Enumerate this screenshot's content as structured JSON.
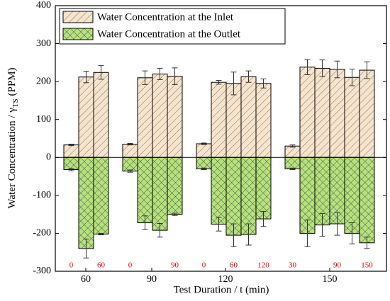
{
  "chart_data": {
    "type": "bar",
    "xlabel": "Test Duration / t (min)",
    "ylabel": {
      "text": "Water Concentration / γ",
      "sub": "TS",
      "unit": "(PPM)"
    },
    "categories": [
      "60",
      "90",
      "120",
      "150"
    ],
    "annotations": [
      [
        "0",
        null,
        "60"
      ],
      [
        "0",
        null,
        null,
        "90"
      ],
      [
        "0",
        null,
        "60",
        null,
        "120"
      ],
      [
        "30",
        null,
        null,
        "90",
        null,
        "150"
      ]
    ],
    "series": [
      {
        "name": "Water Concentration at the Inlet",
        "color": "#f7e4cc",
        "hatch": "diagonal",
        "values": [
          [
            33,
            212,
            224
          ],
          [
            35,
            210,
            220,
            214
          ],
          [
            36,
            198,
            195,
            213,
            195
          ],
          [
            30,
            238,
            235,
            232,
            211,
            230
          ]
        ],
        "errors": [
          [
            2,
            15,
            18
          ],
          [
            2,
            18,
            15,
            22
          ],
          [
            2,
            5,
            30,
            15,
            12
          ],
          [
            3,
            20,
            22,
            22,
            22,
            22
          ]
        ]
      },
      {
        "name": "Water Concentration at the Outlet",
        "color": "#b5e27d",
        "hatch": "cross",
        "values": [
          [
            -32,
            -240,
            -202
          ],
          [
            -36,
            -172,
            -192,
            -150
          ],
          [
            -30,
            -176,
            -205,
            -203,
            -162
          ],
          [
            -30,
            -200,
            -178,
            -175,
            -200,
            -225
          ]
        ],
        "errors": [
          [
            3,
            25,
            2
          ],
          [
            3,
            18,
            18,
            3
          ],
          [
            2,
            18,
            30,
            28,
            20
          ],
          [
            2,
            35,
            30,
            30,
            28,
            15
          ]
        ]
      }
    ],
    "ylim": [
      -300,
      400
    ],
    "yticks": [
      -300,
      -200,
      -100,
      0,
      100,
      200,
      300,
      400
    ]
  }
}
